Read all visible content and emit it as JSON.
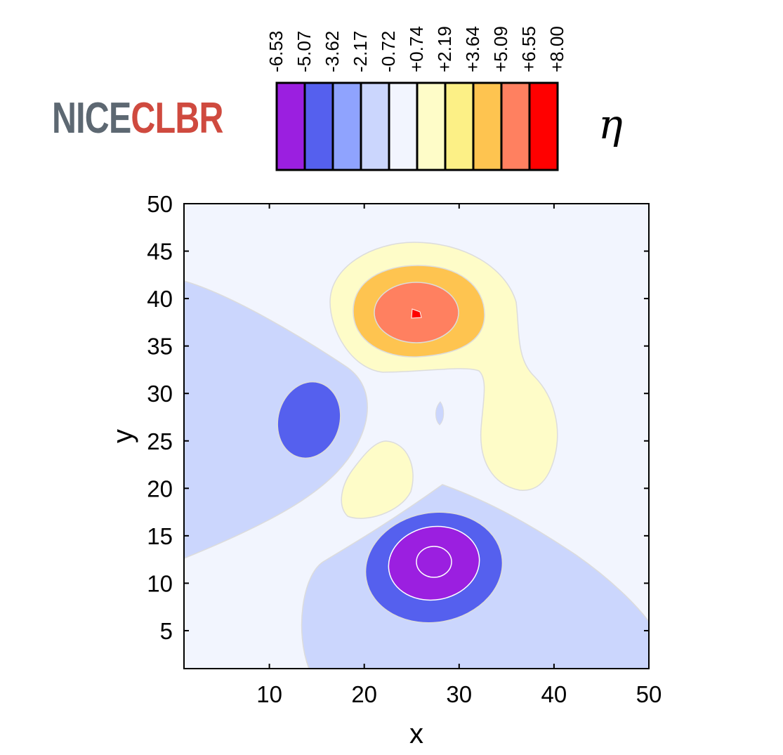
{
  "logo": {
    "part1": "NICE",
    "part2": "CLBR"
  },
  "colorbar_symbol": "η",
  "chart_data": {
    "type": "contour",
    "variable": "η",
    "xlabel": "x",
    "ylabel": "y",
    "xlim": [
      1,
      50
    ],
    "ylim": [
      1,
      50
    ],
    "xticks": [
      10,
      20,
      30,
      40,
      50
    ],
    "yticks": [
      5,
      10,
      15,
      20,
      25,
      30,
      35,
      40,
      45,
      50
    ],
    "colorbar": {
      "levels": [
        "-6.53",
        "-5.07",
        "-3.62",
        "-2.17",
        "-0.72",
        "+0.74",
        "+2.19",
        "+3.64",
        "+5.09",
        "+6.55",
        "+8.00"
      ],
      "colors": [
        "#9b1fe0",
        "#5560ee",
        "#8fa3fe",
        "#cbd6fd",
        "#f2f5fe",
        "#fefcc8",
        "#fcf086",
        "#fec450",
        "#ff8060",
        "#ff0000"
      ]
    },
    "background_level": "-0.72 to +0.74",
    "features": [
      {
        "name": "positive peak",
        "center": [
          25.5,
          38.5
        ],
        "max_band": "+6.55 to +8.00"
      },
      {
        "name": "negative well (bottom)",
        "center": [
          28,
          12.5
        ],
        "min_band": "-6.53 to -5.07"
      },
      {
        "name": "negative well (left)",
        "center": [
          14,
          27
        ],
        "min_band": "-5.07 to -3.62"
      },
      {
        "name": "negative region (left)",
        "band": "-2.17 to -0.72"
      },
      {
        "name": "negative region (bottom-right)",
        "band": "-2.17 to -0.72"
      },
      {
        "name": "positive lobe (center-left)",
        "center": [
          21,
          21.5
        ],
        "band": "+0.74 to +2.19"
      },
      {
        "name": "positive tail (right)",
        "center": [
          40,
          24
        ],
        "band": "+0.74 to +2.19"
      }
    ]
  }
}
